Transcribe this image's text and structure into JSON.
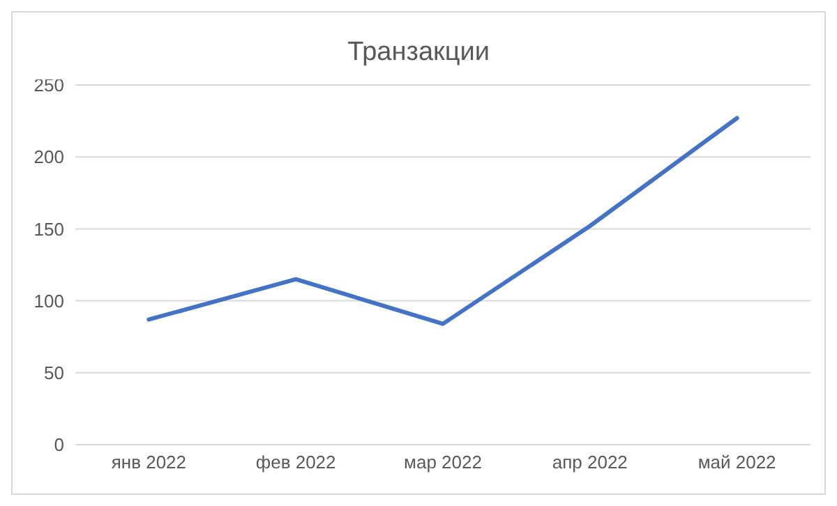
{
  "chart_data": {
    "type": "line",
    "title": "Транзакции",
    "categories": [
      "янв 2022",
      "фев 2022",
      "мар 2022",
      "апр 2022",
      "май 2022"
    ],
    "series": [
      {
        "color": "#4472c4",
        "values": [
          87,
          115,
          84,
          152,
          227
        ]
      }
    ],
    "ylim": [
      0,
      250
    ],
    "yticks": [
      0,
      50,
      100,
      150,
      200,
      250
    ],
    "grid": "y",
    "marker": "none",
    "line_style": "solid"
  }
}
